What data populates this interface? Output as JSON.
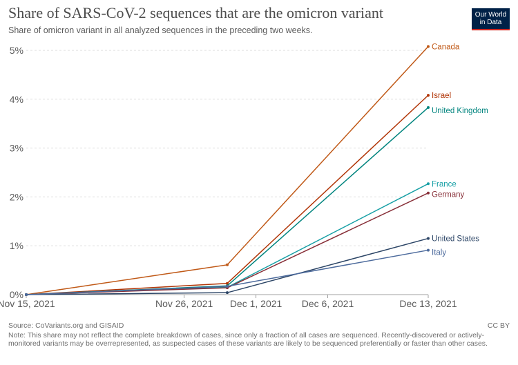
{
  "header": {
    "title": "Share of SARS-CoV-2 sequences that are the omicron variant",
    "subtitle": "Share of omicron variant in all analyzed sequences in the preceding two weeks.",
    "logo_line1": "Our World",
    "logo_line2": "in Data"
  },
  "footer": {
    "source": "Source: CoVariants.org and GISAID",
    "license": "CC BY",
    "note": "Note: This share may not reflect the complete breakdown of cases, since only a fraction of all cases are sequenced. Recently-discovered or actively-monitored variants may be overrepresented, as suspected cases of these variants are likely to be sequenced preferentially or faster than other cases."
  },
  "chart_data": {
    "type": "line",
    "x": [
      "2021-11-15",
      "2021-11-29",
      "2021-12-13"
    ],
    "xticks": [
      "2021-11-15",
      "2021-11-26",
      "2021-12-01",
      "2021-12-06",
      "2021-12-13"
    ],
    "xtick_labels": [
      "Nov 15, 2021",
      "Nov 26, 2021",
      "Dec 1, 2021",
      "Dec 6, 2021",
      "Dec 13, 2021"
    ],
    "yticks": [
      0,
      1,
      2,
      3,
      4,
      5
    ],
    "ytick_labels": [
      "0%",
      "1%",
      "2%",
      "3%",
      "4%",
      "5%"
    ],
    "ylim": [
      0,
      5
    ],
    "grid": "horizontal dashed",
    "series": [
      {
        "name": "Canada",
        "color": "#c05917",
        "values": [
          0,
          0.61,
          5.08
        ]
      },
      {
        "name": "Israel",
        "color": "#b13507",
        "values": [
          0,
          0.23,
          4.08
        ]
      },
      {
        "name": "United Kingdom",
        "color": "#00847e",
        "values": [
          0,
          0.18,
          3.83
        ]
      },
      {
        "name": "France",
        "color": "#18a0a6",
        "values": [
          0,
          0.15,
          2.27
        ]
      },
      {
        "name": "Germany",
        "color": "#883039",
        "values": [
          0,
          0.14,
          2.08
        ]
      },
      {
        "name": "United States",
        "color": "#2c4566",
        "values": [
          0,
          0.04,
          1.15
        ]
      },
      {
        "name": "Italy",
        "color": "#4c6a9c",
        "values": [
          0,
          0.17,
          0.91
        ]
      }
    ]
  }
}
